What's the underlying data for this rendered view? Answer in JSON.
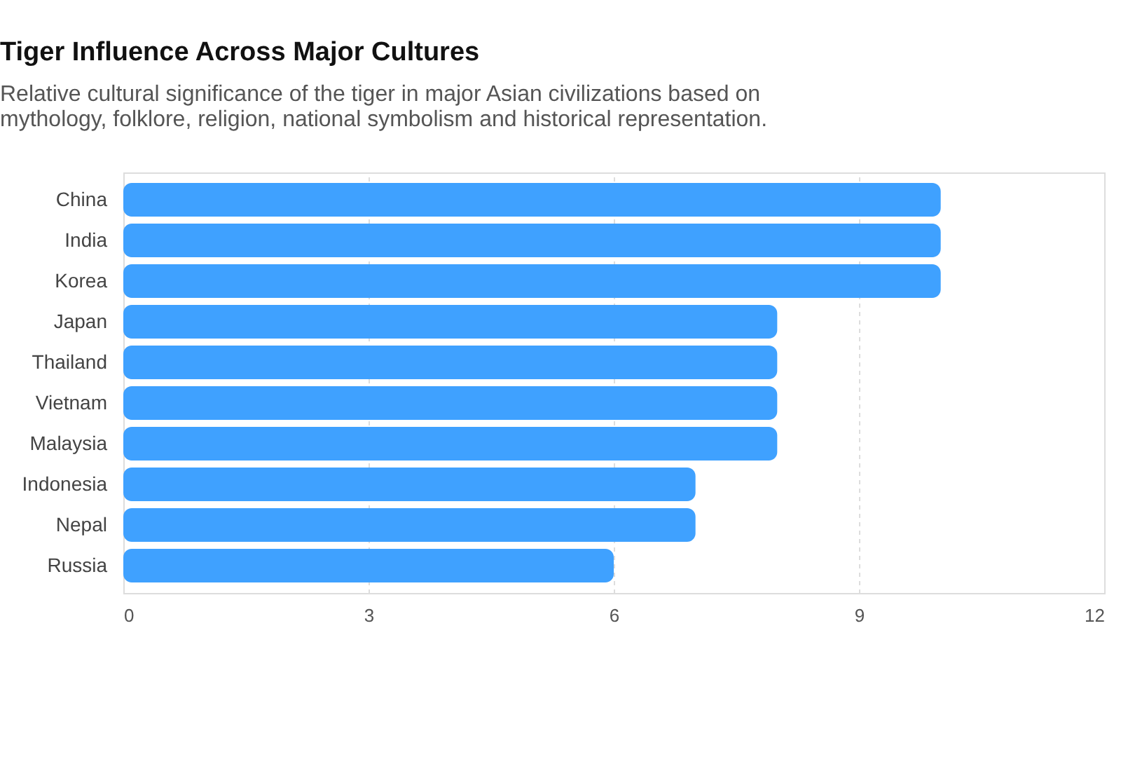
{
  "chart_data": {
    "type": "bar",
    "orientation": "horizontal",
    "title": "Tiger Influence Across Major Cultures",
    "subtitle": "Relative cultural significance of the tiger in major Asian civilizations based on mythology, folklore, religion, national symbolism and historical representation.",
    "categories": [
      "China",
      "India",
      "Korea",
      "Japan",
      "Thailand",
      "Vietnam",
      "Malaysia",
      "Indonesia",
      "Nepal",
      "Russia"
    ],
    "values": [
      10,
      10,
      10,
      8,
      8,
      8,
      8,
      7,
      7,
      6
    ],
    "color": "#3fa1ff",
    "xlim": [
      0,
      12
    ],
    "xticks": [
      0,
      3,
      6,
      9,
      12
    ],
    "grid": "x"
  }
}
